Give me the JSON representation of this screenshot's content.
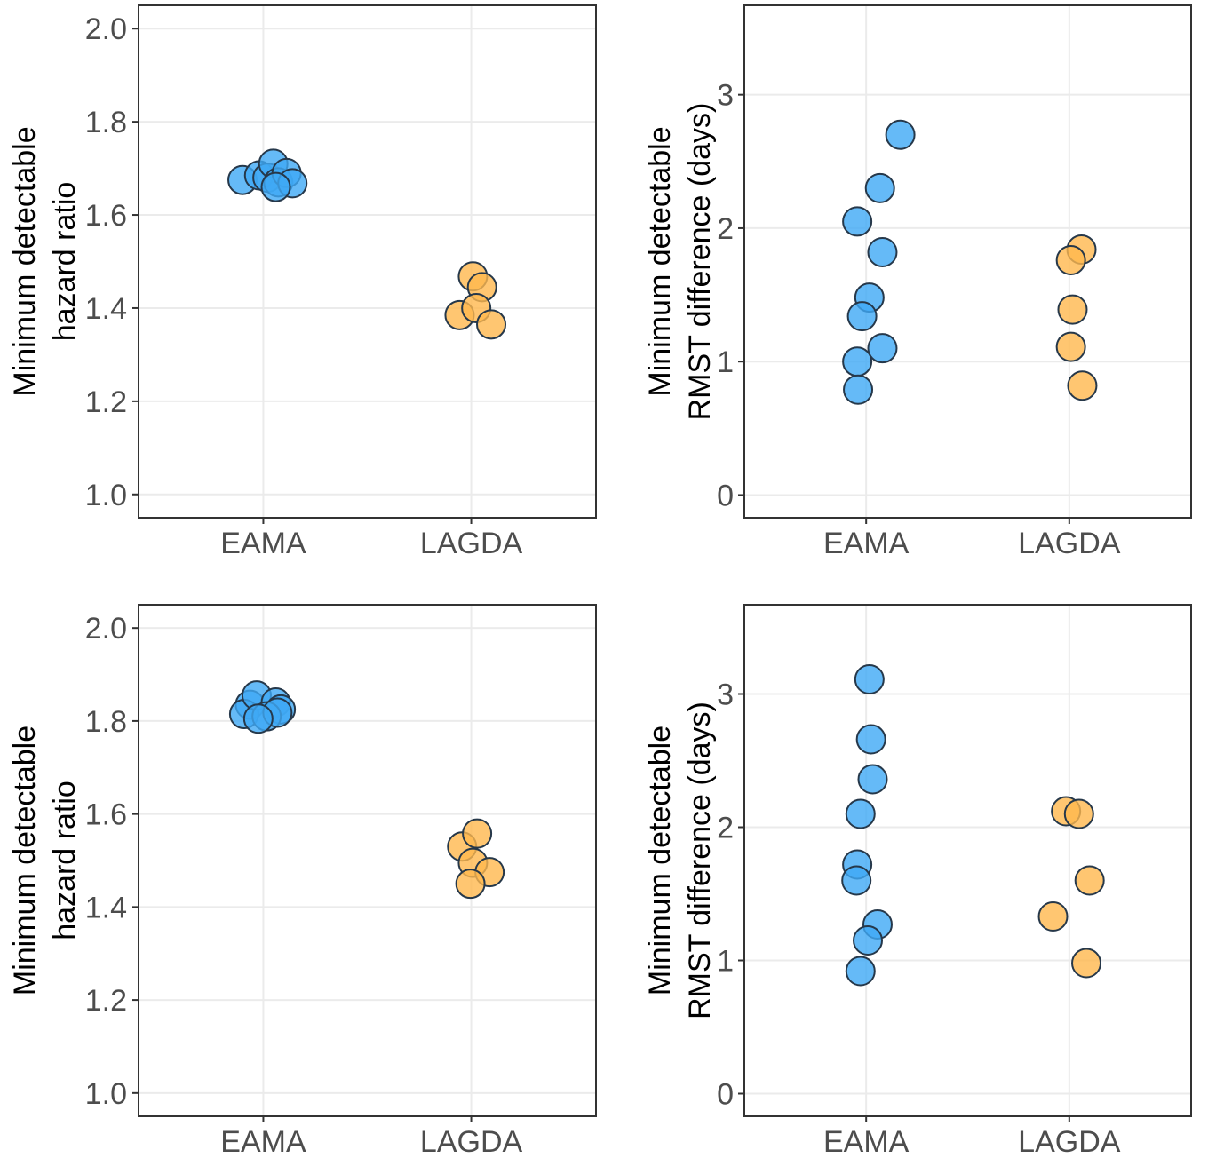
{
  "colors": {
    "EAMA": "#3fa9f5",
    "LAGDA": "#ffb84d",
    "point_stroke": "#26384a",
    "grid": "#ebebeb",
    "panel_border": "#333333"
  },
  "chart_data": [
    {
      "type": "scatter",
      "ylabel": [
        "Minimum detectable",
        "hazard ratio"
      ],
      "xlabel": "",
      "categories": [
        "EAMA",
        "LAGDA"
      ],
      "ylim": [
        0.95,
        2.05
      ],
      "yticks": [
        "1.0",
        "1.2",
        "1.4",
        "1.6",
        "1.8",
        "2.0"
      ],
      "grid": true,
      "series": [
        {
          "name": "EAMA",
          "x_jitter": [
            -0.25,
            -0.05,
            0.05,
            0.12,
            0.18,
            0.28,
            0.35,
            0.15
          ],
          "y": [
            1.675,
            1.685,
            1.68,
            1.71,
            1.67,
            1.69,
            1.668,
            1.66
          ]
        },
        {
          "name": "LAGDA",
          "x_jitter": [
            -0.14,
            0.02,
            0.13,
            0.06,
            0.24
          ],
          "y": [
            1.385,
            1.468,
            1.445,
            1.4,
            1.365
          ]
        }
      ]
    },
    {
      "type": "scatter",
      "ylabel": [
        "Minimum detectable",
        "RMST difference (days)"
      ],
      "xlabel": "",
      "categories": [
        "EAMA",
        "LAGDA"
      ],
      "ylim": [
        -0.17,
        3.67
      ],
      "yticks": [
        "0",
        "1",
        "2",
        "3"
      ],
      "grid": true,
      "series": [
        {
          "name": "EAMA",
          "x_jitter": [
            0.42,
            0.17,
            -0.11,
            0.2,
            0.04,
            -0.05,
            0.2,
            -0.11,
            -0.1
          ],
          "y": [
            2.7,
            2.3,
            2.05,
            1.82,
            1.48,
            1.34,
            1.1,
            1.0,
            0.79
          ]
        },
        {
          "name": "LAGDA",
          "x_jitter": [
            0.15,
            0.02,
            0.04,
            0.02,
            0.16
          ],
          "y": [
            1.84,
            1.76,
            1.39,
            1.11,
            0.82
          ]
        }
      ]
    },
    {
      "type": "scatter",
      "ylabel": [
        "Minimum detectable",
        "hazard ratio"
      ],
      "xlabel": "",
      "categories": [
        "EAMA",
        "LAGDA"
      ],
      "ylim": [
        0.95,
        2.05
      ],
      "yticks": [
        "1.0",
        "1.2",
        "1.4",
        "1.6",
        "1.8",
        "2.0"
      ],
      "grid": true,
      "series": [
        {
          "name": "EAMA",
          "x_jitter": [
            -0.16,
            -0.23,
            -0.08,
            0.15,
            0.21,
            0.04,
            0.17,
            -0.06
          ],
          "y": [
            1.835,
            1.815,
            1.855,
            1.84,
            1.825,
            1.81,
            1.818,
            1.805
          ]
        },
        {
          "name": "LAGDA",
          "x_jitter": [
            -0.11,
            0.02,
            0.07,
            0.22,
            -0.01
          ],
          "y": [
            1.53,
            1.495,
            1.558,
            1.475,
            1.45
          ]
        }
      ]
    },
    {
      "type": "scatter",
      "ylabel": [
        "Minimum detectable",
        "RMST difference (days)"
      ],
      "xlabel": "",
      "categories": [
        "EAMA",
        "LAGDA"
      ],
      "ylim": [
        -0.17,
        3.67
      ],
      "yticks": [
        "0",
        "1",
        "2",
        "3"
      ],
      "grid": true,
      "series": [
        {
          "name": "EAMA",
          "x_jitter": [
            0.04,
            0.06,
            0.08,
            -0.07,
            -0.11,
            -0.12,
            0.14,
            0.02,
            -0.07
          ],
          "y": [
            3.11,
            2.66,
            2.36,
            2.1,
            1.72,
            1.6,
            1.27,
            1.15,
            0.92
          ]
        },
        {
          "name": "LAGDA",
          "x_jitter": [
            -0.04,
            0.12,
            0.25,
            -0.2,
            0.21
          ],
          "y": [
            2.12,
            2.1,
            1.6,
            1.33,
            0.98
          ]
        }
      ]
    }
  ]
}
